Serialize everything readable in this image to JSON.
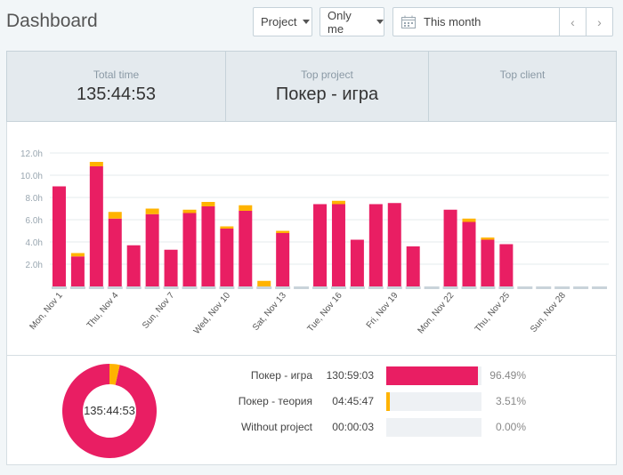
{
  "header": {
    "title": "Dashboard",
    "project_filter": "Project",
    "user_filter": "Only me",
    "date_range": "This month",
    "prev_label": "‹",
    "next_label": "›"
  },
  "summary": {
    "total_time_label": "Total time",
    "total_time_value": "135:44:53",
    "top_project_label": "Top project",
    "top_project_value": "Покер - игра",
    "top_client_label": "Top client",
    "top_client_value": ""
  },
  "colors": {
    "primary": "#e91e63",
    "secondary": "#ffb300",
    "empty": "#c9d3da"
  },
  "chart_data": {
    "type": "bar",
    "stacked": true,
    "ylim": [
      0,
      12
    ],
    "y_ticks": [
      "2.0h",
      "4.0h",
      "6.0h",
      "8.0h",
      "10.0h",
      "12.0h"
    ],
    "y_tick_values": [
      2,
      4,
      6,
      8,
      10,
      12
    ],
    "x_tick_labels": [
      "Mon, Nov 1",
      "Thu, Nov 4",
      "Sun, Nov 7",
      "Wed, Nov 10",
      "Sat, Nov 13",
      "Tue, Nov 16",
      "Fri, Nov 19",
      "Mon, Nov 22",
      "Thu, Nov 25",
      "Sun, Nov 28"
    ],
    "x_tick_indices": [
      0,
      3,
      6,
      9,
      12,
      15,
      18,
      21,
      24,
      27
    ],
    "days": 30,
    "series": [
      {
        "name": "Покер - игра",
        "values": [
          9.0,
          2.7,
          10.8,
          6.1,
          3.7,
          6.5,
          3.3,
          6.6,
          7.2,
          5.2,
          6.8,
          0,
          4.8,
          0,
          7.4,
          7.4,
          4.2,
          7.4,
          7.5,
          3.6,
          0,
          6.9,
          5.8,
          4.2,
          3.8,
          0,
          0,
          0,
          0,
          0
        ]
      },
      {
        "name": "Покер - теория",
        "values": [
          0,
          0.3,
          0.4,
          0.6,
          0,
          0.5,
          0,
          0.3,
          0.4,
          0.2,
          0.5,
          0.5,
          0.2,
          0,
          0,
          0.3,
          0,
          0,
          0,
          0,
          0,
          0,
          0.3,
          0.2,
          0,
          0,
          0,
          0,
          0,
          0
        ]
      }
    ]
  },
  "donut": {
    "center_label": "135:44:53",
    "fractions": [
      0.9649,
      0.0351
    ]
  },
  "legend": [
    {
      "name": "Покер - игра",
      "duration": "130:59:03",
      "percent": "96.49%",
      "fill": 0.9649,
      "color": "#e91e63"
    },
    {
      "name": "Покер - теория",
      "duration": "04:45:47",
      "percent": "3.51%",
      "fill": 0.0351,
      "color": "#ffb300"
    },
    {
      "name": "Without project",
      "duration": "00:00:03",
      "percent": "0.00%",
      "fill": 0.0,
      "color": "#c9d3da"
    }
  ]
}
